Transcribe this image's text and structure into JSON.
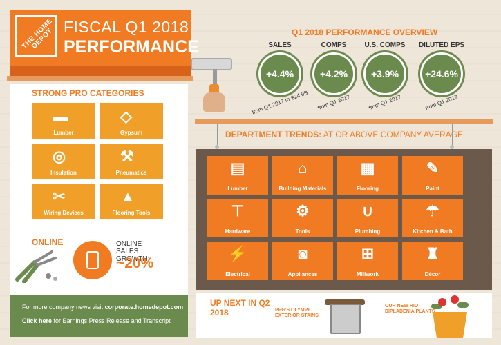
{
  "header": {
    "logo_text": "THE HOME DEPOT",
    "title_line1": "FISCAL Q1 2018",
    "title_line2": "PERFORMANCE"
  },
  "performance": {
    "title": "Q1 2018 PERFORMANCE OVERVIEW",
    "metrics": [
      {
        "label": "SALES",
        "value": "+4.4%",
        "sub": "from Q1 2017 to $24.9B"
      },
      {
        "label": "COMPS",
        "value": "+4.2%",
        "sub": "from Q1 2017"
      },
      {
        "label": "U.S. COMPS",
        "value": "+3.9%",
        "sub": "from Q1 2017"
      },
      {
        "label": "DILUTED EPS",
        "value": "+24.6%",
        "sub": "from Q1 2017"
      }
    ],
    "metric_color": "#6b8a4e"
  },
  "pro_categories": {
    "title": "STRONG PRO CATEGORIES",
    "items": [
      {
        "label": "Lumber",
        "icon": "lumber-icon"
      },
      {
        "label": "Gypsum",
        "icon": "gypsum-icon"
      },
      {
        "label": "Insulation",
        "icon": "insulation-icon"
      },
      {
        "label": "Pneumatics",
        "icon": "nail-gun-icon"
      },
      {
        "label": "Wiring Devices",
        "icon": "wire-stripper-icon"
      },
      {
        "label": "Flooring Tools",
        "icon": "flooring-tool-icon"
      }
    ]
  },
  "online": {
    "title": "ONLINE",
    "growth_label": "ONLINE SALES GROWTH:",
    "growth_value": "~20%"
  },
  "news": {
    "line1_prefix": "For more company news visit",
    "line1_link": "corporate.homedepot.com",
    "line2_link": "Click here",
    "line2_suffix": "for Earnings Press Release and Transcript"
  },
  "department": {
    "title_bold": "DEPARTMENT TRENDS:",
    "title_rest": "AT OR ABOVE COMPANY AVERAGE",
    "items": [
      {
        "label": "Lumber",
        "icon": "lumber-icon"
      },
      {
        "label": "Building Materials",
        "icon": "house-icon"
      },
      {
        "label": "Flooring",
        "icon": "flooring-icon"
      },
      {
        "label": "Paint",
        "icon": "paintbrush-icon"
      },
      {
        "label": "Hardware",
        "icon": "bolt-icon"
      },
      {
        "label": "Tools",
        "icon": "wrench-icon"
      },
      {
        "label": "Plumbing",
        "icon": "pipe-icon"
      },
      {
        "label": "Kitchen & Bath",
        "icon": "shower-icon"
      },
      {
        "label": "Electrical",
        "icon": "plug-icon"
      },
      {
        "label": "Appliances",
        "icon": "washer-icon"
      },
      {
        "label": "Millwork",
        "icon": "window-icon"
      },
      {
        "label": "Décor",
        "icon": "lamp-icon"
      }
    ]
  },
  "up_next": {
    "title": "UP NEXT IN Q2 2018",
    "item1": "PPG'S OLYMPIC EXTERIOR STAINS",
    "item2": "OUR NEW RIO DIPLADENIA PLANTS"
  },
  "colors": {
    "brand_orange": "#f07b23",
    "green": "#6b8a4e"
  }
}
